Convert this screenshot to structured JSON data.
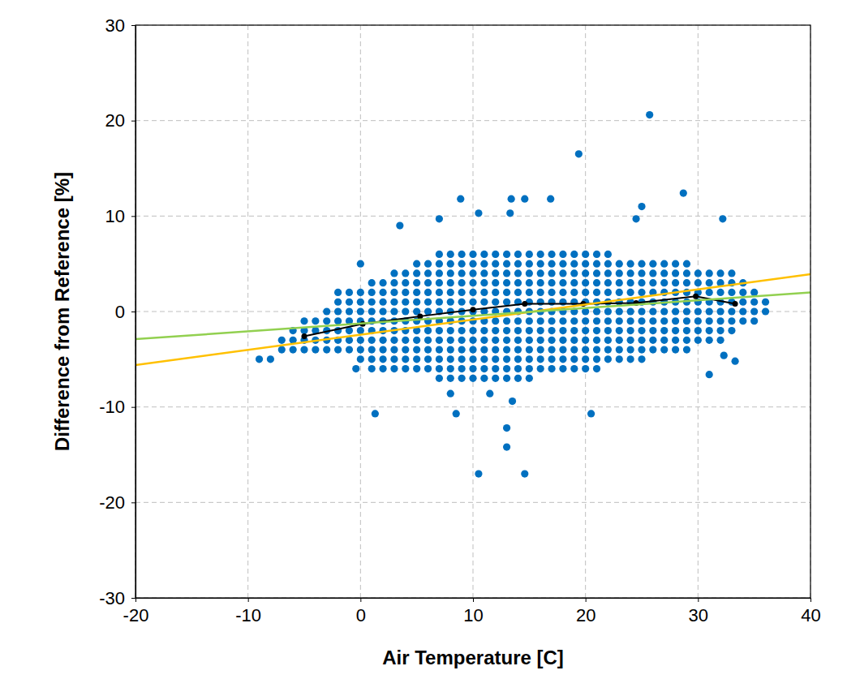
{
  "chart_data": {
    "type": "scatter",
    "x_label": "Air Temperature [C]",
    "y_label": "Difference from Reference [%]",
    "xlim": [
      -20,
      40
    ],
    "ylim": [
      -30,
      30
    ],
    "xticks": [
      -20,
      -10,
      0,
      10,
      20,
      30,
      40
    ],
    "yticks": [
      -30,
      -20,
      -10,
      0,
      10,
      20,
      30
    ],
    "grid": true,
    "series": [
      {
        "type": "scatter",
        "color": "#0070c0",
        "marker": "circle",
        "x": [
          -9,
          -8,
          -7,
          -7,
          -6,
          -6,
          -6,
          -5,
          -5,
          -5,
          -5,
          -4,
          -4,
          -4,
          -4,
          -3,
          -3,
          -3,
          -3,
          -3,
          -2,
          -2,
          -2,
          -2,
          -2,
          -2,
          -2,
          -1,
          -1,
          -1,
          -1,
          -1,
          -1,
          -1,
          0,
          0,
          0,
          0,
          0,
          0,
          0,
          0,
          1,
          1,
          1,
          1,
          1,
          1,
          1,
          1,
          1,
          1,
          2,
          2,
          2,
          2,
          2,
          2,
          2,
          2,
          2,
          2,
          3,
          3,
          3,
          3,
          3,
          3,
          3,
          3,
          3,
          3,
          3,
          4,
          4,
          4,
          4,
          4,
          4,
          4,
          4,
          4,
          4,
          4,
          5,
          5,
          5,
          5,
          5,
          5,
          5,
          5,
          5,
          5,
          5,
          5,
          6,
          6,
          6,
          6,
          6,
          6,
          6,
          6,
          6,
          6,
          6,
          6,
          7,
          7,
          7,
          7,
          7,
          7,
          7,
          7,
          7,
          7,
          7,
          7,
          7,
          7,
          8,
          8,
          8,
          8,
          8,
          8,
          8,
          8,
          8,
          8,
          8,
          8,
          8,
          8,
          9,
          9,
          9,
          9,
          9,
          9,
          9,
          9,
          9,
          9,
          9,
          9,
          9,
          9,
          10,
          10,
          10,
          10,
          10,
          10,
          10,
          10,
          10,
          10,
          10,
          10,
          10,
          10,
          11,
          11,
          11,
          11,
          11,
          11,
          11,
          11,
          11,
          11,
          11,
          11,
          11,
          11,
          12,
          12,
          12,
          12,
          12,
          12,
          12,
          12,
          12,
          12,
          12,
          12,
          12,
          12,
          13,
          13,
          13,
          13,
          13,
          13,
          13,
          13,
          13,
          13,
          13,
          13,
          13,
          13,
          14,
          14,
          14,
          14,
          14,
          14,
          14,
          14,
          14,
          14,
          14,
          14,
          14,
          14,
          15,
          15,
          15,
          15,
          15,
          15,
          15,
          15,
          15,
          15,
          15,
          15,
          15,
          15,
          16,
          16,
          16,
          16,
          16,
          16,
          16,
          16,
          16,
          16,
          16,
          16,
          16,
          17,
          17,
          17,
          17,
          17,
          17,
          17,
          17,
          17,
          17,
          17,
          17,
          17,
          18,
          18,
          18,
          18,
          18,
          18,
          18,
          18,
          18,
          18,
          18,
          18,
          18,
          19,
          19,
          19,
          19,
          19,
          19,
          19,
          19,
          19,
          19,
          19,
          19,
          19,
          20,
          20,
          20,
          20,
          20,
          20,
          20,
          20,
          20,
          20,
          20,
          20,
          20,
          21,
          21,
          21,
          21,
          21,
          21,
          21,
          21,
          21,
          21,
          21,
          21,
          21,
          22,
          22,
          22,
          22,
          22,
          22,
          22,
          22,
          22,
          22,
          22,
          22,
          23,
          23,
          23,
          23,
          23,
          23,
          23,
          23,
          23,
          23,
          23,
          24,
          24,
          24,
          24,
          24,
          24,
          24,
          24,
          24,
          24,
          24,
          25,
          25,
          25,
          25,
          25,
          25,
          25,
          25,
          25,
          25,
          25,
          26,
          26,
          26,
          26,
          26,
          26,
          26,
          26,
          26,
          26,
          27,
          27,
          27,
          27,
          27,
          27,
          27,
          27,
          27,
          27,
          28,
          28,
          28,
          28,
          28,
          28,
          28,
          28,
          28,
          28,
          29,
          29,
          29,
          29,
          29,
          29,
          29,
          29,
          29,
          29,
          30,
          30,
          30,
          30,
          30,
          30,
          30,
          30,
          31,
          31,
          31,
          31,
          31,
          31,
          31,
          31,
          32,
          32,
          32,
          32,
          32,
          32,
          32,
          32,
          33,
          33,
          33,
          33,
          33,
          33,
          33,
          34,
          34,
          34,
          34,
          34,
          35,
          35,
          35,
          35,
          36,
          36,
          25.7,
          19.4,
          28.7,
          8.9,
          13.4,
          14.6,
          16.9,
          25,
          10.5,
          3.5,
          13.3,
          32.2,
          24.5,
          7,
          1.3,
          8.5,
          20.5,
          10.5,
          14.6,
          13,
          13,
          13.5,
          11.5,
          8,
          31,
          32.3,
          33.3,
          0,
          -0.4
        ],
        "values": [
          -5,
          -5,
          -4,
          -3,
          -4,
          -3,
          -2,
          -4,
          -3,
          -2,
          -1,
          -4,
          -3,
          -2,
          -1,
          -4,
          -3,
          -2,
          -1,
          0,
          -4,
          -3,
          -2,
          -1,
          0,
          1,
          2,
          -4,
          -3,
          -2,
          -1,
          0,
          1,
          2,
          -5,
          -4,
          -3,
          -2,
          -1,
          0,
          1,
          2,
          -6,
          -5,
          -4,
          -3,
          -2,
          -1,
          0,
          1,
          2,
          3,
          -6,
          -5,
          -4,
          -3,
          -2,
          -1,
          0,
          1,
          2,
          3,
          -6,
          -5,
          -4,
          -3,
          -2,
          -1,
          0,
          1,
          2,
          3,
          4,
          -6,
          -5,
          -4,
          -3,
          -2,
          -1,
          0,
          1,
          2,
          3,
          4,
          -6,
          -5,
          -4,
          -3,
          -2,
          -1,
          0,
          1,
          2,
          3,
          4,
          5,
          -6,
          -5,
          -4,
          -3,
          -2,
          -1,
          0,
          1,
          2,
          3,
          4,
          5,
          -7,
          -6,
          -5,
          -4,
          -3,
          -2,
          -1,
          0,
          1,
          2,
          3,
          4,
          5,
          6,
          -7,
          -6,
          -5,
          -4,
          -3,
          -2,
          -1,
          0,
          1,
          2,
          3,
          4,
          5,
          6,
          -7,
          -6,
          -5,
          -4,
          -3,
          -2,
          -1,
          0,
          1,
          2,
          3,
          4,
          5,
          6,
          -7,
          -6,
          -5,
          -4,
          -3,
          -2,
          -1,
          0,
          1,
          2,
          3,
          4,
          5,
          6,
          -7,
          -6,
          -5,
          -4,
          -3,
          -2,
          -1,
          0,
          1,
          2,
          3,
          4,
          5,
          6,
          -7,
          -6,
          -5,
          -4,
          -3,
          -2,
          -1,
          0,
          1,
          2,
          3,
          4,
          5,
          6,
          -7,
          -6,
          -5,
          -4,
          -3,
          -2,
          -1,
          0,
          1,
          2,
          3,
          4,
          5,
          6,
          -7,
          -6,
          -5,
          -4,
          -3,
          -2,
          -1,
          0,
          1,
          2,
          3,
          4,
          5,
          6,
          -7,
          -6,
          -5,
          -4,
          -3,
          -2,
          -1,
          0,
          1,
          2,
          3,
          4,
          5,
          6,
          -6,
          -5,
          -4,
          -3,
          -2,
          -1,
          0,
          1,
          2,
          3,
          4,
          5,
          6,
          -6,
          -5,
          -4,
          -3,
          -2,
          -1,
          0,
          1,
          2,
          3,
          4,
          5,
          6,
          -6,
          -5,
          -4,
          -3,
          -2,
          -1,
          0,
          1,
          2,
          3,
          4,
          5,
          6,
          -6,
          -5,
          -4,
          -3,
          -2,
          -1,
          0,
          1,
          2,
          3,
          4,
          5,
          6,
          -6,
          -5,
          -4,
          -3,
          -2,
          -1,
          0,
          1,
          2,
          3,
          4,
          5,
          6,
          -6,
          -5,
          -4,
          -3,
          -2,
          -1,
          0,
          1,
          2,
          3,
          4,
          5,
          6,
          -5,
          -4,
          -3,
          -2,
          -1,
          0,
          1,
          2,
          3,
          4,
          5,
          6,
          -5,
          -4,
          -3,
          -2,
          -1,
          0,
          1,
          2,
          3,
          4,
          5,
          -5,
          -4,
          -3,
          -2,
          -1,
          0,
          1,
          2,
          3,
          4,
          5,
          -5,
          -4,
          -3,
          -2,
          -1,
          0,
          1,
          2,
          3,
          4,
          5,
          -4,
          -3,
          -2,
          -1,
          0,
          1,
          2,
          3,
          4,
          5,
          -4,
          -3,
          -2,
          -1,
          0,
          1,
          2,
          3,
          4,
          5,
          -4,
          -3,
          -2,
          -1,
          0,
          1,
          2,
          3,
          4,
          5,
          -4,
          -3,
          -2,
          -1,
          0,
          1,
          2,
          3,
          4,
          5,
          -3,
          -2,
          -1,
          0,
          1,
          2,
          3,
          4,
          -3,
          -2,
          -1,
          0,
          1,
          2,
          3,
          4,
          -3,
          -2,
          -1,
          0,
          1,
          2,
          3,
          4,
          -2,
          -1,
          0,
          1,
          2,
          3,
          4,
          -1,
          0,
          1,
          2,
          3,
          -1,
          0,
          1,
          2,
          0,
          1,
          20.6,
          16.5,
          12.4,
          11.8,
          11.8,
          11.8,
          11.8,
          11,
          10.3,
          9,
          10.3,
          9.7,
          9.7,
          9.7,
          -10.7,
          -10.7,
          -10.7,
          -17,
          -17,
          -14.2,
          -12.2,
          -9.4,
          -8.6,
          -8.6,
          -6.6,
          -4.6,
          -5.2,
          5,
          -6
        ]
      },
      {
        "type": "line",
        "color": "#000000",
        "marker": "circle",
        "x": [
          -5,
          0.2,
          5.3,
          10,
          14.6,
          19.8,
          24.5,
          29.8,
          33.3
        ],
        "values": [
          -2.6,
          -1.3,
          -0.5,
          0.2,
          0.8,
          0.8,
          0.9,
          1.6,
          0.8
        ]
      },
      {
        "type": "line",
        "color": "#ffc000",
        "marker": "none",
        "x": [
          -20,
          40
        ],
        "values": [
          -5.6,
          3.9
        ]
      },
      {
        "type": "line",
        "color": "#92d050",
        "marker": "none",
        "x": [
          -20,
          40
        ],
        "values": [
          -2.9,
          2.0
        ]
      }
    ]
  }
}
